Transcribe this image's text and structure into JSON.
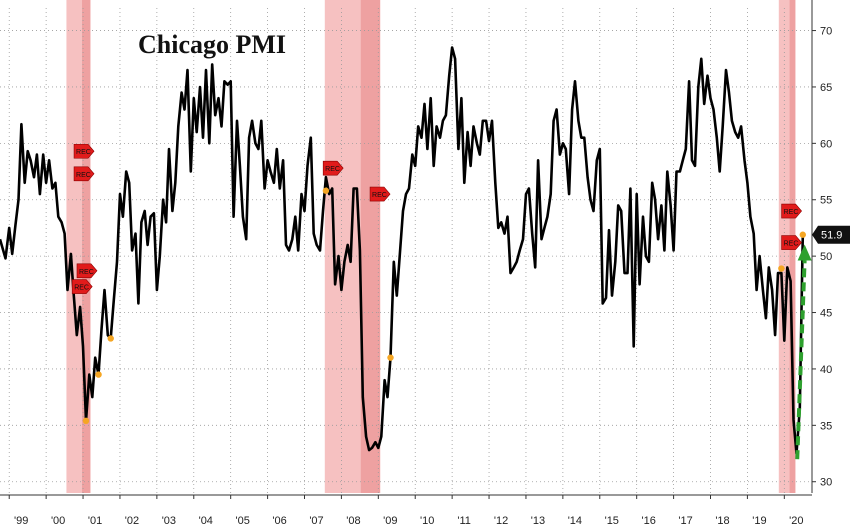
{
  "chart_data": {
    "type": "line",
    "title": "Chicago PMI",
    "xlabel": "",
    "ylabel": "",
    "xlim": [
      1998.75,
      2020.75
    ],
    "ylim": [
      29,
      72
    ],
    "y_ticks": [
      30,
      35,
      40,
      45,
      50,
      55,
      60,
      65,
      70
    ],
    "x_tick_labels": [
      {
        "label": "'99",
        "x": 1999.0
      },
      {
        "label": "'00",
        "x": 2000.0
      },
      {
        "label": "'01",
        "x": 2001.0
      },
      {
        "label": "'02",
        "x": 2002.0
      },
      {
        "label": "'03",
        "x": 2003.0
      },
      {
        "label": "'04",
        "x": 2004.0
      },
      {
        "label": "'05",
        "x": 2005.0
      },
      {
        "label": "'06",
        "x": 2006.0
      },
      {
        "label": "'07",
        "x": 2007.0
      },
      {
        "label": "'08",
        "x": 2008.0
      },
      {
        "label": "'09",
        "x": 2009.0
      },
      {
        "label": "'10",
        "x": 2010.0
      },
      {
        "label": "'11",
        "x": 2011.0
      },
      {
        "label": "'12",
        "x": 2012.0
      },
      {
        "label": "'13",
        "x": 2013.0
      },
      {
        "label": "'14",
        "x": 2014.0
      },
      {
        "label": "'15",
        "x": 2015.0
      },
      {
        "label": "'16",
        "x": 2016.0
      },
      {
        "label": "'17",
        "x": 2017.0
      },
      {
        "label": "'18",
        "x": 2018.0
      },
      {
        "label": "'19",
        "x": 2019.0
      },
      {
        "label": "'20",
        "x": 2020.0
      }
    ],
    "grid": true,
    "recession_bands": [
      {
        "start": 2000.55,
        "end": 2001.2
      },
      {
        "start": 2007.55,
        "end": 2009.05
      },
      {
        "start": 2019.85,
        "end": 2020.3
      }
    ],
    "series": [
      {
        "color": "#000000",
        "points": [
          [
            1998.75,
            51.5
          ],
          [
            1998.9,
            49.8
          ],
          [
            1999.0,
            52.5
          ],
          [
            1999.08,
            50.2
          ],
          [
            1999.17,
            52.8
          ],
          [
            1999.25,
            55.0
          ],
          [
            1999.33,
            61.7
          ],
          [
            1999.42,
            56.5
          ],
          [
            1999.5,
            59.3
          ],
          [
            1999.58,
            58.5
          ],
          [
            1999.67,
            57.0
          ],
          [
            1999.75,
            59.0
          ],
          [
            1999.83,
            55.5
          ],
          [
            1999.92,
            59.0
          ],
          [
            2000.0,
            56.5
          ],
          [
            2000.08,
            58.5
          ],
          [
            2000.17,
            56.0
          ],
          [
            2000.25,
            56.5
          ],
          [
            2000.33,
            53.5
          ],
          [
            2000.42,
            53.0
          ],
          [
            2000.5,
            52.0
          ],
          [
            2000.58,
            47.0
          ],
          [
            2000.67,
            50.2
          ],
          [
            2000.75,
            46.5
          ],
          [
            2000.83,
            43.0
          ],
          [
            2000.92,
            45.5
          ],
          [
            2001.0,
            42.0
          ],
          [
            2001.08,
            35.4
          ],
          [
            2001.17,
            39.5
          ],
          [
            2001.25,
            37.5
          ],
          [
            2001.33,
            41.0
          ],
          [
            2001.42,
            39.5
          ],
          [
            2001.5,
            43.5
          ],
          [
            2001.58,
            47.0
          ],
          [
            2001.67,
            43.0
          ],
          [
            2001.75,
            42.7
          ],
          [
            2001.83,
            46.0
          ],
          [
            2001.92,
            49.5
          ],
          [
            2002.0,
            55.5
          ],
          [
            2002.08,
            53.5
          ],
          [
            2002.17,
            57.5
          ],
          [
            2002.25,
            56.5
          ],
          [
            2002.33,
            50.5
          ],
          [
            2002.42,
            52.0
          ],
          [
            2002.5,
            45.8
          ],
          [
            2002.58,
            53.0
          ],
          [
            2002.67,
            54.0
          ],
          [
            2002.75,
            51.0
          ],
          [
            2002.83,
            53.5
          ],
          [
            2002.92,
            53.8
          ],
          [
            2003.0,
            47.0
          ],
          [
            2003.08,
            50.0
          ],
          [
            2003.17,
            55.0
          ],
          [
            2003.25,
            53.0
          ],
          [
            2003.33,
            59.5
          ],
          [
            2003.42,
            54.0
          ],
          [
            2003.5,
            56.5
          ],
          [
            2003.58,
            61.5
          ],
          [
            2003.67,
            64.5
          ],
          [
            2003.75,
            63.0
          ],
          [
            2003.83,
            66.5
          ],
          [
            2003.92,
            57.5
          ],
          [
            2004.0,
            64.0
          ],
          [
            2004.08,
            61.0
          ],
          [
            2004.17,
            65.0
          ],
          [
            2004.25,
            60.5
          ],
          [
            2004.33,
            66.5
          ],
          [
            2004.42,
            60.0
          ],
          [
            2004.5,
            67.0
          ],
          [
            2004.58,
            62.5
          ],
          [
            2004.67,
            64.0
          ],
          [
            2004.75,
            61.5
          ],
          [
            2004.83,
            65.5
          ],
          [
            2004.92,
            65.2
          ],
          [
            2005.0,
            65.5
          ],
          [
            2005.08,
            53.5
          ],
          [
            2005.17,
            62.0
          ],
          [
            2005.25,
            58.0
          ],
          [
            2005.33,
            53.5
          ],
          [
            2005.42,
            51.5
          ],
          [
            2005.5,
            60.5
          ],
          [
            2005.58,
            62.0
          ],
          [
            2005.67,
            60.0
          ],
          [
            2005.75,
            59.5
          ],
          [
            2005.83,
            62.0
          ],
          [
            2005.92,
            56.0
          ],
          [
            2006.0,
            58.5
          ],
          [
            2006.08,
            57.5
          ],
          [
            2006.17,
            56.5
          ],
          [
            2006.25,
            59.5
          ],
          [
            2006.33,
            56.0
          ],
          [
            2006.42,
            58.5
          ],
          [
            2006.5,
            51.0
          ],
          [
            2006.58,
            50.5
          ],
          [
            2006.67,
            51.5
          ],
          [
            2006.75,
            53.5
          ],
          [
            2006.83,
            50.5
          ],
          [
            2006.92,
            55.5
          ],
          [
            2007.0,
            54.0
          ],
          [
            2007.08,
            58.0
          ],
          [
            2007.17,
            60.5
          ],
          [
            2007.25,
            52.0
          ],
          [
            2007.33,
            51.0
          ],
          [
            2007.42,
            50.5
          ],
          [
            2007.5,
            54.0
          ],
          [
            2007.58,
            57.0
          ],
          [
            2007.67,
            55.5
          ],
          [
            2007.75,
            56.0
          ],
          [
            2007.83,
            47.5
          ],
          [
            2007.92,
            50.0
          ],
          [
            2008.0,
            47.0
          ],
          [
            2008.08,
            49.5
          ],
          [
            2008.17,
            51.0
          ],
          [
            2008.25,
            49.5
          ],
          [
            2008.33,
            56.0
          ],
          [
            2008.42,
            56.0
          ],
          [
            2008.5,
            50.5
          ],
          [
            2008.58,
            37.5
          ],
          [
            2008.67,
            34.0
          ],
          [
            2008.75,
            32.8
          ],
          [
            2008.83,
            33.0
          ],
          [
            2008.92,
            33.5
          ],
          [
            2009.0,
            33.0
          ],
          [
            2009.08,
            34.0
          ],
          [
            2009.17,
            39.0
          ],
          [
            2009.25,
            37.5
          ],
          [
            2009.33,
            41.0
          ],
          [
            2009.42,
            49.5
          ],
          [
            2009.5,
            46.5
          ],
          [
            2009.58,
            50.0
          ],
          [
            2009.67,
            54.0
          ],
          [
            2009.75,
            55.5
          ],
          [
            2009.83,
            56.0
          ],
          [
            2009.92,
            59.0
          ],
          [
            2010.0,
            58.0
          ],
          [
            2010.08,
            61.5
          ],
          [
            2010.17,
            60.5
          ],
          [
            2010.25,
            63.5
          ],
          [
            2010.33,
            59.5
          ],
          [
            2010.42,
            64.0
          ],
          [
            2010.5,
            58.0
          ],
          [
            2010.58,
            61.5
          ],
          [
            2010.67,
            60.5
          ],
          [
            2010.75,
            62.0
          ],
          [
            2010.83,
            62.5
          ],
          [
            2010.92,
            66.0
          ],
          [
            2011.0,
            68.5
          ],
          [
            2011.08,
            67.5
          ],
          [
            2011.17,
            59.5
          ],
          [
            2011.25,
            64.0
          ],
          [
            2011.33,
            56.5
          ],
          [
            2011.42,
            61.0
          ],
          [
            2011.5,
            58.0
          ],
          [
            2011.58,
            61.5
          ],
          [
            2011.67,
            60.0
          ],
          [
            2011.75,
            59.0
          ],
          [
            2011.83,
            62.0
          ],
          [
            2011.92,
            62.0
          ],
          [
            2012.0,
            60.2
          ],
          [
            2012.08,
            62.0
          ],
          [
            2012.17,
            56.5
          ],
          [
            2012.25,
            52.5
          ],
          [
            2012.33,
            53.0
          ],
          [
            2012.42,
            52.0
          ],
          [
            2012.5,
            53.5
          ],
          [
            2012.58,
            48.5
          ],
          [
            2012.67,
            49.0
          ],
          [
            2012.75,
            49.5
          ],
          [
            2012.83,
            50.5
          ],
          [
            2012.92,
            51.5
          ],
          [
            2013.0,
            55.5
          ],
          [
            2013.08,
            56.0
          ],
          [
            2013.17,
            52.0
          ],
          [
            2013.25,
            49.0
          ],
          [
            2013.33,
            58.5
          ],
          [
            2013.42,
            51.5
          ],
          [
            2013.5,
            52.5
          ],
          [
            2013.58,
            53.5
          ],
          [
            2013.67,
            55.5
          ],
          [
            2013.75,
            62.0
          ],
          [
            2013.83,
            63.0
          ],
          [
            2013.92,
            59.0
          ],
          [
            2014.0,
            60.0
          ],
          [
            2014.08,
            59.5
          ],
          [
            2014.17,
            55.5
          ],
          [
            2014.25,
            63.0
          ],
          [
            2014.33,
            65.5
          ],
          [
            2014.42,
            62.0
          ],
          [
            2014.5,
            60.5
          ],
          [
            2014.58,
            60.5
          ],
          [
            2014.67,
            57.0
          ],
          [
            2014.75,
            55.0
          ],
          [
            2014.83,
            54.0
          ],
          [
            2014.92,
            58.5
          ],
          [
            2015.0,
            59.5
          ],
          [
            2015.08,
            45.8
          ],
          [
            2015.17,
            46.3
          ],
          [
            2015.25,
            52.3
          ],
          [
            2015.33,
            46.5
          ],
          [
            2015.42,
            49.5
          ],
          [
            2015.5,
            54.5
          ],
          [
            2015.58,
            54.0
          ],
          [
            2015.67,
            48.5
          ],
          [
            2015.75,
            48.5
          ],
          [
            2015.83,
            56.0
          ],
          [
            2015.92,
            42.0
          ],
          [
            2016.0,
            55.5
          ],
          [
            2016.08,
            47.5
          ],
          [
            2016.17,
            53.5
          ],
          [
            2016.25,
            50.0
          ],
          [
            2016.33,
            49.5
          ],
          [
            2016.42,
            56.5
          ],
          [
            2016.5,
            55.0
          ],
          [
            2016.58,
            51.5
          ],
          [
            2016.67,
            54.5
          ],
          [
            2016.75,
            50.5
          ],
          [
            2016.83,
            57.5
          ],
          [
            2016.92,
            54.5
          ],
          [
            2017.0,
            50.5
          ],
          [
            2017.08,
            57.5
          ],
          [
            2017.17,
            57.5
          ],
          [
            2017.25,
            58.5
          ],
          [
            2017.33,
            59.5
          ],
          [
            2017.42,
            65.5
          ],
          [
            2017.5,
            58.5
          ],
          [
            2017.58,
            58.0
          ],
          [
            2017.67,
            65.0
          ],
          [
            2017.75,
            67.5
          ],
          [
            2017.83,
            63.5
          ],
          [
            2017.92,
            66.0
          ],
          [
            2018.0,
            64.0
          ],
          [
            2018.08,
            63.0
          ],
          [
            2018.17,
            60.5
          ],
          [
            2018.25,
            57.5
          ],
          [
            2018.33,
            61.5
          ],
          [
            2018.42,
            66.5
          ],
          [
            2018.5,
            64.5
          ],
          [
            2018.58,
            62.0
          ],
          [
            2018.67,
            61.0
          ],
          [
            2018.75,
            60.5
          ],
          [
            2018.83,
            61.5
          ],
          [
            2018.92,
            58.5
          ],
          [
            2019.0,
            56.5
          ],
          [
            2019.08,
            53.5
          ],
          [
            2019.17,
            52.0
          ],
          [
            2019.25,
            47.0
          ],
          [
            2019.33,
            50.0
          ],
          [
            2019.42,
            47.0
          ],
          [
            2019.5,
            44.5
          ],
          [
            2019.58,
            49.0
          ],
          [
            2019.67,
            47.0
          ],
          [
            2019.75,
            43.0
          ],
          [
            2019.83,
            48.5
          ],
          [
            2019.92,
            48.5
          ],
          [
            2020.0,
            42.5
          ],
          [
            2020.08,
            49.0
          ],
          [
            2020.17,
            47.8
          ],
          [
            2020.25,
            35.5
          ],
          [
            2020.33,
            32.5
          ],
          [
            2020.42,
            36.5
          ],
          [
            2020.5,
            51.9
          ]
        ]
      }
    ],
    "recession_markers": [
      {
        "label": "REC",
        "x": 2001.0,
        "y": 59.3
      },
      {
        "label": "REC",
        "x": 2001.0,
        "y": 57.3
      },
      {
        "label": "REC",
        "x": 2001.08,
        "y": 48.7
      },
      {
        "label": "REC",
        "x": 2000.95,
        "y": 47.3
      },
      {
        "label": "REC",
        "x": 2007.75,
        "y": 57.8
      },
      {
        "label": "REC",
        "x": 2009.02,
        "y": 55.5
      },
      {
        "label": "REC",
        "x": 2020.17,
        "y": 54.0
      },
      {
        "label": "REC",
        "x": 2020.17,
        "y": 51.2
      }
    ],
    "highlight_points": [
      {
        "x": 2001.08,
        "y": 35.4
      },
      {
        "x": 2001.42,
        "y": 39.5
      },
      {
        "x": 2001.75,
        "y": 42.7
      },
      {
        "x": 2007.58,
        "y": 55.8
      },
      {
        "x": 2009.33,
        "y": 41.0
      },
      {
        "x": 2019.92,
        "y": 48.9
      },
      {
        "x": 2020.5,
        "y": 51.9
      }
    ],
    "last_value_label": {
      "text": "51.9",
      "y": 51.9
    },
    "arrow": {
      "from": [
        2020.35,
        32.0
      ],
      "to": [
        2020.55,
        50.5
      ],
      "color": "#2ea02e"
    },
    "colors": {
      "recession_fill": "#f4b6b6",
      "recession_core": "#e98c8c",
      "line": "#000000",
      "marker_fill": "#e11b1b",
      "highlight": "#f5a623",
      "last_label_bg": "#111111"
    }
  }
}
